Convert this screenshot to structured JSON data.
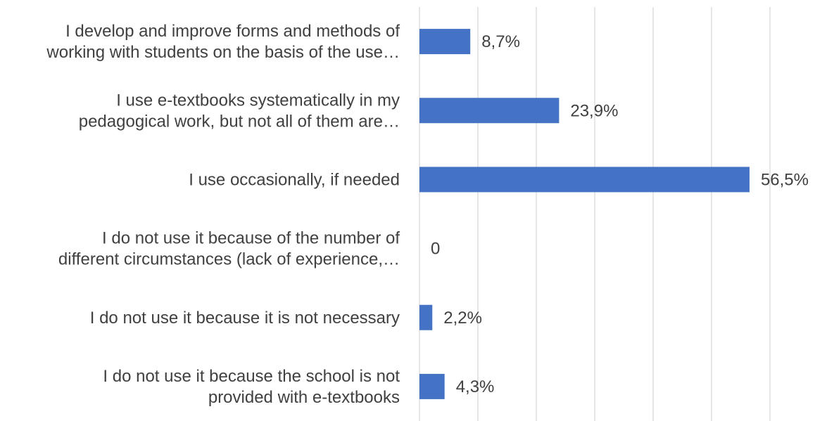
{
  "chart_data": {
    "type": "bar",
    "orientation": "horizontal",
    "categories": [
      [
        "I develop and improve forms and methods of",
        "working with students on the basis of the use…"
      ],
      [
        "I use e-textbooks systematically in my",
        "pedagogical work, but not all of them are…"
      ],
      [
        "I use occasionally, if needed"
      ],
      [
        "I do not use it because of the number of",
        "different circumstances (lack of experience,…"
      ],
      [
        "I do not use it because it is not necessary"
      ],
      [
        "I do not use it because the school is not",
        "provided with e-textbooks"
      ]
    ],
    "values": [
      8.7,
      23.9,
      56.5,
      0,
      2.2,
      4.3
    ],
    "data_labels": [
      "8,7%",
      "23,9%",
      "56,5%",
      "0",
      "2,2%",
      "4,3%"
    ],
    "xlim": [
      0,
      60
    ],
    "grid": true,
    "bar_color": "#4472c4",
    "gridline_color": "#d9d9d9",
    "text_color": "#404040"
  }
}
